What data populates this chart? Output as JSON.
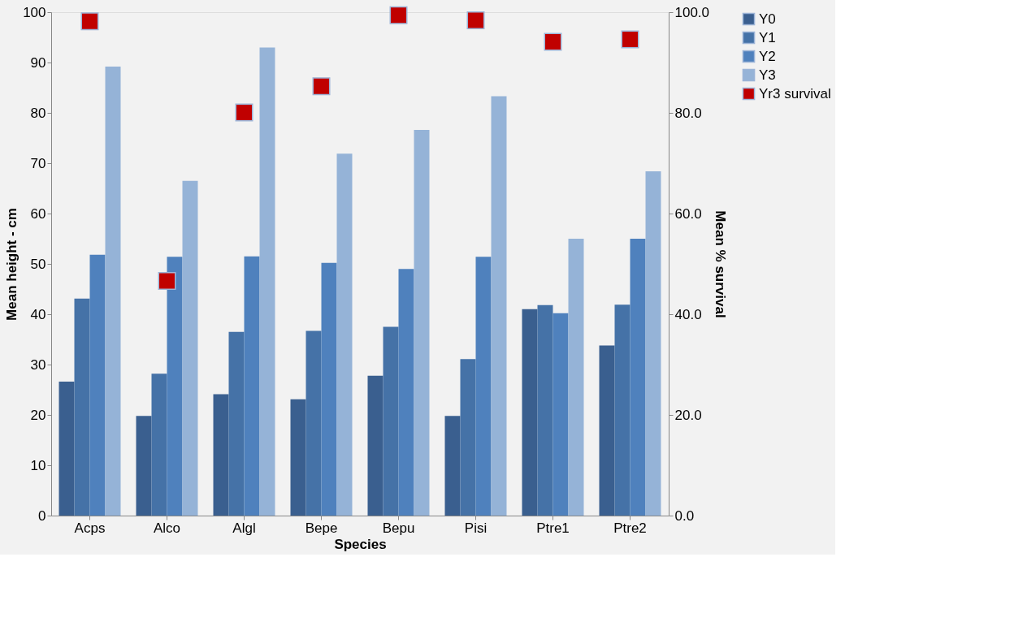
{
  "chart_data": {
    "type": "bar",
    "xlabel": "Species",
    "ylabel": "Mean height - cm",
    "y2label": "Mean % survival",
    "categories": [
      "Acps",
      "Alco",
      "Algl",
      "Bepe",
      "Bepu",
      "Pisi",
      "Ptre1",
      "Ptre2"
    ],
    "series": [
      {
        "name": "Y0",
        "color": "#3a5f8f",
        "values": [
          26.6,
          19.8,
          24.1,
          23.1,
          27.8,
          19.8,
          41.0,
          33.8
        ]
      },
      {
        "name": "Y1",
        "color": "#4572a7",
        "values": [
          43.1,
          28.2,
          36.5,
          36.7,
          37.5,
          31.1,
          41.8,
          41.9
        ]
      },
      {
        "name": "Y2",
        "color": "#4f81bd",
        "values": [
          51.8,
          51.4,
          51.5,
          50.2,
          49.0,
          51.4,
          40.2,
          55.0
        ]
      },
      {
        "name": "Y3",
        "color": "#95b3d7",
        "values": [
          89.2,
          66.5,
          93.0,
          71.9,
          76.6,
          83.3,
          55.0,
          68.4
        ]
      },
      {
        "name": "Yr3 survival",
        "color": "#c00000",
        "type": "scatter",
        "axis": "y2",
        "marker": "square",
        "values": [
          98.2,
          46.6,
          80.1,
          85.3,
          99.4,
          98.4,
          94.1,
          94.6
        ]
      }
    ],
    "ylim": [
      0,
      100
    ],
    "yticks": [
      0,
      10,
      20,
      30,
      40,
      50,
      60,
      70,
      80,
      90,
      100
    ],
    "y2lim": [
      0,
      100
    ],
    "y2ticks": [
      {
        "value": 0,
        "label": "0.0"
      },
      {
        "value": 20,
        "label": "20.0"
      },
      {
        "value": 40,
        "label": "40.0"
      },
      {
        "value": 60,
        "label": "60.0"
      },
      {
        "value": 80,
        "label": "80.0"
      },
      {
        "value": 100,
        "label": "100.0"
      }
    ],
    "legend": "right"
  }
}
